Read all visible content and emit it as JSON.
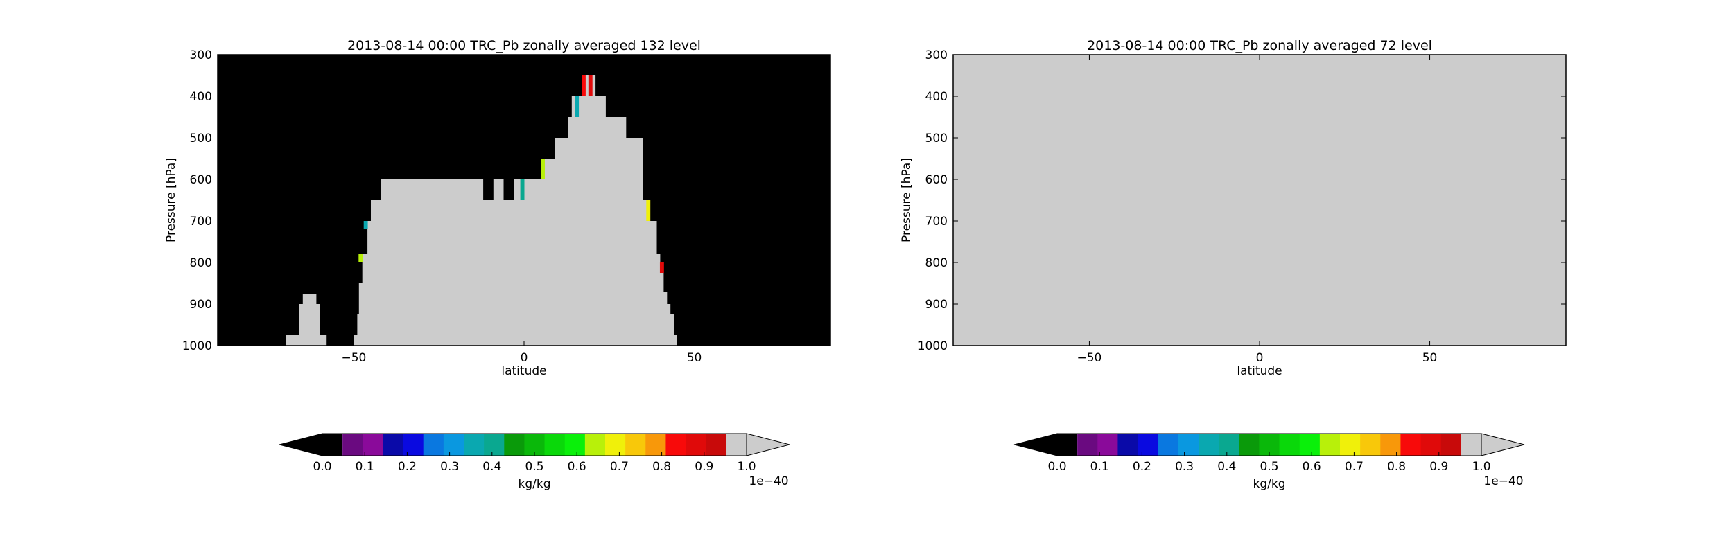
{
  "colors": {
    "background": "#000000",
    "fill_gray": "#cccccc",
    "colormap": [
      "#6a0a80",
      "#8a0a9a",
      "#0a0aa8",
      "#0a0ae0",
      "#0a78e0",
      "#0a98e0",
      "#0aa8b0",
      "#0aa890",
      "#0a9a0a",
      "#0ab80a",
      "#0ad80a",
      "#0af00a",
      "#b8f00a",
      "#f0f00a",
      "#f8c80a",
      "#f8980a",
      "#f80a0a",
      "#e00a0a",
      "#c80a0a"
    ],
    "under": "#000000",
    "over": "#cccccc"
  },
  "chart_data": [
    {
      "type": "heatmap",
      "title": "2013-08-14 00:00 TRC_Pb zonally averaged 132 level",
      "xlabel": "latitude",
      "ylabel": "Pressure [hPa]",
      "xlim": [
        -90,
        90
      ],
      "ylim": [
        1000,
        300
      ],
      "xticks": [
        -50,
        0,
        50
      ],
      "xtick_labels": [
        "−50",
        "0",
        "50"
      ],
      "yticks": [
        300,
        400,
        500,
        600,
        700,
        800,
        900,
        1000
      ],
      "ytick_labels": [
        "300",
        "400",
        "500",
        "600",
        "700",
        "800",
        "900",
        "1000"
      ],
      "background_value": "0.0",
      "region_value": "> 1.0e-40",
      "region_top_hPa": {
        "x": [
          -72,
          -70,
          -66,
          -65,
          -61,
          -60,
          -58,
          -55,
          -50,
          -49,
          -48.5,
          -47.5,
          -46,
          -45,
          -42,
          -39,
          -36,
          -33,
          -30,
          -27,
          -24,
          -21,
          -18,
          -15,
          -12,
          -9,
          -6,
          -3,
          0,
          3,
          6,
          9,
          10,
          13,
          14,
          16,
          18,
          21,
          24,
          27,
          30,
          33,
          35,
          37,
          39,
          40,
          41,
          42,
          43,
          44,
          45
        ],
        "y": [
          1000,
          975,
          900,
          875,
          900,
          975,
          1000,
          1000,
          975,
          925,
          850,
          780,
          700,
          650,
          600,
          600,
          600,
          600,
          600,
          600,
          600,
          600,
          600,
          600,
          650,
          600,
          650,
          600,
          600,
          600,
          550,
          500,
          500,
          450,
          400,
          400,
          350,
          400,
          450,
          450,
          500,
          500,
          650,
          700,
          780,
          820,
          870,
          900,
          925,
          975,
          1000
        ]
      },
      "colored_columns": [
        {
          "lat": -46.5,
          "top": 700,
          "bottom": 720,
          "color": "#0aa8b0"
        },
        {
          "lat": -48.0,
          "top": 780,
          "bottom": 800,
          "color": "#b8f00a"
        },
        {
          "lat": -0.5,
          "top": 600,
          "bottom": 650,
          "color": "#0aa890"
        },
        {
          "lat": 5.5,
          "top": 550,
          "bottom": 600,
          "color": "#b8f00a"
        },
        {
          "lat": 15.5,
          "top": 400,
          "bottom": 450,
          "color": "#0aa8b0"
        },
        {
          "lat": 17.5,
          "top": 350,
          "bottom": 400,
          "color": "#f80a0a"
        },
        {
          "lat": 19.5,
          "top": 350,
          "bottom": 400,
          "color": "#e00a0a"
        },
        {
          "lat": 36.5,
          "top": 650,
          "bottom": 700,
          "color": "#f0f00a"
        },
        {
          "lat": 40.5,
          "top": 800,
          "bottom": 825,
          "color": "#e00a0a"
        }
      ],
      "colorbar": {
        "label": "kg/kg",
        "ticks": [
          "0.0",
          "0.1",
          "0.2",
          "0.3",
          "0.4",
          "0.5",
          "0.6",
          "0.7",
          "0.8",
          "0.9",
          "1.0"
        ],
        "multiplier": "1e−40",
        "range": [
          0.0,
          1.0
        ],
        "extend": "both"
      }
    },
    {
      "type": "heatmap",
      "title": "2013-08-14 00:00 TRC_Pb zonally averaged 72 level",
      "xlabel": "latitude",
      "ylabel": "Pressure [hPa]",
      "xlim": [
        -90,
        90
      ],
      "ylim": [
        1000,
        300
      ],
      "xticks": [
        -50,
        0,
        50
      ],
      "xtick_labels": [
        "−50",
        "0",
        "50"
      ],
      "yticks": [
        300,
        400,
        500,
        600,
        700,
        800,
        900,
        1000
      ],
      "ytick_labels": [
        "300",
        "400",
        "500",
        "600",
        "700",
        "800",
        "900",
        "1000"
      ],
      "field_value": "> 1.0e-40 (uniform)",
      "colorbar": {
        "label": "kg/kg",
        "ticks": [
          "0.0",
          "0.1",
          "0.2",
          "0.3",
          "0.4",
          "0.5",
          "0.6",
          "0.7",
          "0.8",
          "0.9",
          "1.0"
        ],
        "multiplier": "1e−40",
        "range": [
          0.0,
          1.0
        ],
        "extend": "both"
      }
    }
  ]
}
